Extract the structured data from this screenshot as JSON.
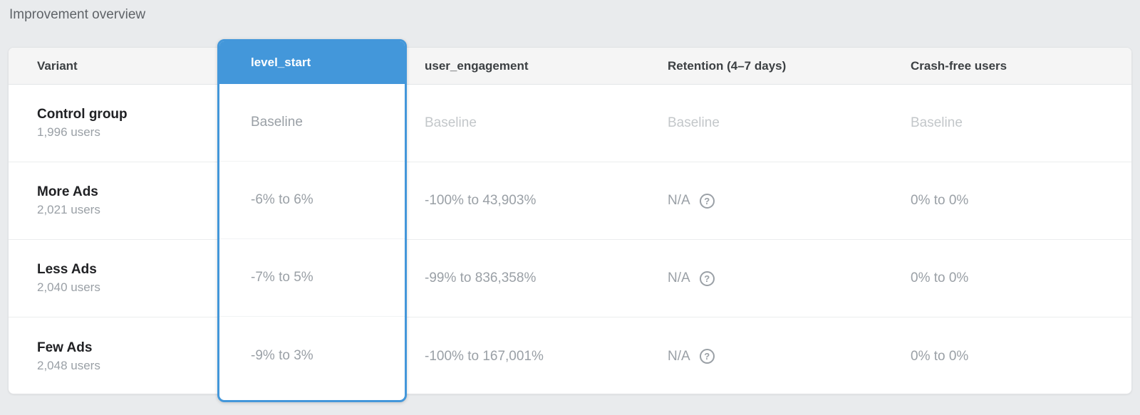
{
  "page": {
    "title": "Improvement overview"
  },
  "colors": {
    "accent_blue": "#4397da",
    "page_background": "#e9ebed",
    "header_background": "#f5f5f5",
    "baseline_text": "#c3c7ca",
    "value_text": "#9aa0a6"
  },
  "icons": {
    "retention_help": "help-circle-icon",
    "help_glyph": "?"
  },
  "table": {
    "columns": [
      {
        "key": "variant",
        "label": "Variant"
      },
      {
        "key": "level_start",
        "label": "level_start",
        "selected": true
      },
      {
        "key": "user_engagement",
        "label": "user_engagement"
      },
      {
        "key": "retention",
        "label": "Retention (4–7 days)"
      },
      {
        "key": "crash_free",
        "label": "Crash-free users"
      }
    ],
    "rows": [
      {
        "variant": "Control group",
        "users": "1,996 users",
        "level_start": "Baseline",
        "user_engagement": "Baseline",
        "retention": "Baseline",
        "crash_free": "Baseline",
        "is_baseline": true
      },
      {
        "variant": "More Ads",
        "users": "2,021 users",
        "level_start": "-6% to 6%",
        "user_engagement": "-100% to 43,903%",
        "retention": "N/A",
        "crash_free": "0% to 0%",
        "is_baseline": false
      },
      {
        "variant": "Less Ads",
        "users": "2,040 users",
        "level_start": "-7% to 5%",
        "user_engagement": "-99% to 836,358%",
        "retention": "N/A",
        "crash_free": "0% to 0%",
        "is_baseline": false
      },
      {
        "variant": "Few Ads",
        "users": "2,048 users",
        "level_start": "-9% to 3%",
        "user_engagement": "-100% to 167,001%",
        "retention": "N/A",
        "crash_free": "0% to 0%",
        "is_baseline": false
      }
    ]
  }
}
